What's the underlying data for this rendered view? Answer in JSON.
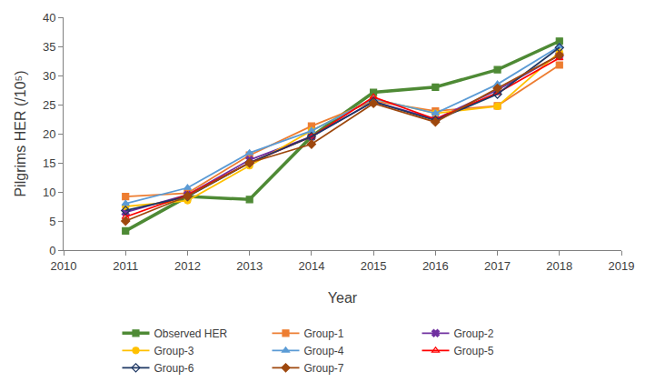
{
  "chart_data": {
    "type": "line",
    "x_label": "Year",
    "y_label": "Pilgrims HER (/10⁵)",
    "x": [
      2011,
      2012,
      2013,
      2014,
      2015,
      2016,
      2017,
      2018
    ],
    "xlim": [
      2010,
      2019
    ],
    "xticks": [
      2010,
      2011,
      2012,
      2013,
      2014,
      2015,
      2016,
      2017,
      2018,
      2019
    ],
    "ylim": [
      0,
      40
    ],
    "yticks": [
      0,
      5,
      10,
      15,
      20,
      25,
      30,
      35,
      40
    ],
    "grid": false,
    "legend": "bottom",
    "series": [
      {
        "name": "Observed HER",
        "color": "#4e8a35",
        "marker": "square",
        "line_style": "solid",
        "values": [
          3.3,
          9.2,
          8.7,
          19.5,
          27.1,
          28.0,
          31.0,
          35.9
        ]
      },
      {
        "name": "Group-1",
        "color": "#ed7d31",
        "marker": "square",
        "line_style": "solid",
        "values": [
          9.2,
          9.8,
          16.3,
          21.3,
          25.6,
          23.9,
          24.8,
          31.8
        ]
      },
      {
        "name": "Group-2",
        "color": "#7030a0",
        "marker": "x",
        "line_style": "solid",
        "values": [
          6.5,
          9.5,
          15.5,
          19.5,
          25.5,
          22.5,
          27.5,
          33.5
        ]
      },
      {
        "name": "Group-3",
        "color": "#ffc000",
        "marker": "circle",
        "line_style": "solid",
        "values": [
          7.5,
          8.5,
          14.5,
          20.5,
          26.0,
          23.5,
          24.7,
          34.0
        ]
      },
      {
        "name": "Group-4",
        "color": "#5b9bd5",
        "marker": "triangle-up",
        "line_style": "solid",
        "values": [
          8.0,
          10.7,
          16.7,
          20.5,
          26.0,
          23.5,
          28.5,
          35.0
        ]
      },
      {
        "name": "Group-5",
        "color": "#ff0000",
        "marker": "triangle-up-open",
        "line_style": "solid",
        "values": [
          5.7,
          9.5,
          15.0,
          19.5,
          26.3,
          22.5,
          27.0,
          33.0
        ]
      },
      {
        "name": "Group-6",
        "color": "#1f3864",
        "marker": "diamond-open",
        "line_style": "solid",
        "values": [
          6.8,
          9.2,
          15.0,
          19.5,
          25.5,
          22.3,
          26.8,
          34.8
        ]
      },
      {
        "name": "Group-7",
        "color": "#9e480e",
        "marker": "diamond",
        "line_style": "solid",
        "values": [
          5.0,
          9.3,
          15.0,
          18.2,
          25.2,
          22.0,
          27.8,
          33.5
        ]
      }
    ]
  }
}
